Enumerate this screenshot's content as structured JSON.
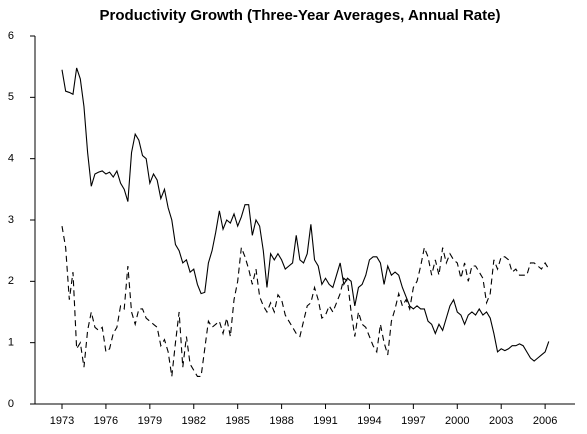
{
  "chart_data": {
    "type": "line",
    "title": "Productivity Growth (Three-Year Averages, Annual Rate)",
    "categories": [
      "1973",
      null,
      null,
      null,
      null,
      null,
      null,
      null,
      null,
      null,
      null,
      null,
      "1976",
      null,
      null,
      null,
      null,
      null,
      null,
      null,
      null,
      null,
      null,
      null,
      "1979",
      null,
      null,
      null,
      null,
      null,
      null,
      null,
      null,
      null,
      null,
      null,
      "1982",
      null,
      null,
      null,
      null,
      null,
      null,
      null,
      null,
      null,
      null,
      null,
      "1985",
      null,
      null,
      null,
      null,
      null,
      null,
      null,
      null,
      null,
      null,
      null,
      "1988",
      null,
      null,
      null,
      null,
      null,
      null,
      null,
      null,
      null,
      null,
      null,
      "1991",
      null,
      null,
      null,
      null,
      null,
      null,
      null,
      null,
      null,
      null,
      null,
      "1994",
      null,
      null,
      null,
      null,
      null,
      null,
      null,
      null,
      null,
      null,
      null,
      "1997",
      null,
      null,
      null,
      null,
      null,
      null,
      null,
      null,
      null,
      null,
      null,
      "2000",
      null,
      null,
      null,
      null,
      null,
      null,
      null,
      null,
      null,
      null,
      null,
      "2003",
      null,
      null,
      null,
      null,
      null,
      null,
      null,
      null,
      null,
      null,
      null,
      "2006",
      null
    ],
    "series": [
      {
        "color": "#000000",
        "style": "solid",
        "values": [
          5.45,
          5.1,
          5.08,
          5.05,
          5.48,
          5.3,
          4.85,
          4.1,
          3.55,
          3.75,
          3.78,
          3.8,
          3.75,
          3.78,
          3.7,
          3.8,
          3.6,
          3.5,
          3.3,
          4.1,
          4.4,
          4.3,
          4.05,
          4.0,
          3.6,
          3.75,
          3.65,
          3.35,
          3.5,
          3.2,
          3.0,
          2.6,
          2.5,
          2.3,
          2.35,
          2.15,
          2.2,
          1.95,
          1.8,
          1.82,
          2.3,
          2.5,
          2.8,
          3.15,
          2.85,
          3.0,
          2.95,
          3.1,
          2.9,
          3.05,
          3.25,
          3.25,
          2.75,
          3.0,
          2.9,
          2.5,
          1.9,
          2.45,
          2.35,
          2.45,
          2.35,
          2.2,
          2.25,
          2.3,
          2.75,
          2.35,
          2.3,
          2.45,
          2.93,
          2.35,
          2.25,
          1.95,
          2.05,
          1.95,
          1.9,
          2.1,
          2.3,
          1.95,
          2.05,
          2.0,
          1.6,
          1.9,
          1.95,
          2.1,
          2.35,
          2.4,
          2.4,
          2.3,
          1.95,
          2.25,
          2.1,
          2.15,
          2.1,
          1.9,
          1.75,
          1.6,
          1.55,
          1.6,
          1.55,
          1.55,
          1.35,
          1.3,
          1.15,
          1.3,
          1.2,
          1.4,
          1.6,
          1.7,
          1.5,
          1.45,
          1.3,
          1.45,
          1.5,
          1.45,
          1.55,
          1.45,
          1.5,
          1.4,
          1.15,
          0.85,
          0.9,
          0.87,
          0.9,
          0.95,
          0.95,
          0.98,
          0.95,
          0.85,
          0.75,
          0.7,
          0.75,
          0.8,
          0.85,
          1.02
        ]
      },
      {
        "color": "#000000",
        "style": "dashed",
        "values": [
          2.9,
          2.55,
          1.7,
          2.15,
          0.9,
          1.0,
          0.6,
          1.2,
          1.5,
          1.25,
          1.2,
          1.25,
          0.85,
          0.9,
          1.15,
          1.25,
          1.6,
          1.55,
          2.25,
          1.5,
          1.3,
          1.55,
          1.55,
          1.4,
          1.35,
          1.3,
          1.25,
          0.95,
          1.05,
          0.85,
          0.45,
          1.0,
          1.5,
          0.6,
          1.1,
          0.65,
          0.55,
          0.45,
          0.45,
          0.9,
          1.35,
          1.25,
          1.3,
          1.35,
          1.15,
          1.4,
          1.1,
          1.7,
          2.0,
          2.55,
          2.4,
          2.2,
          1.95,
          2.2,
          1.75,
          1.6,
          1.5,
          1.65,
          1.5,
          1.78,
          1.7,
          1.45,
          1.35,
          1.25,
          1.15,
          1.1,
          1.35,
          1.6,
          1.65,
          1.9,
          1.7,
          1.4,
          1.45,
          1.6,
          1.5,
          1.65,
          1.8,
          2.05,
          2.0,
          1.5,
          1.1,
          1.5,
          1.3,
          1.25,
          1.1,
          0.95,
          0.85,
          1.3,
          1.0,
          0.8,
          1.35,
          1.55,
          1.8,
          1.6,
          1.7,
          1.55,
          1.9,
          2.0,
          2.25,
          2.55,
          2.4,
          2.1,
          2.35,
          2.1,
          2.55,
          2.3,
          2.45,
          2.35,
          2.3,
          2.05,
          2.3,
          2.0,
          2.25,
          2.25,
          2.15,
          2.05,
          1.65,
          1.8,
          2.35,
          2.2,
          2.4,
          2.4,
          2.35,
          2.15,
          2.2,
          2.1,
          2.1,
          2.1,
          2.3,
          2.3,
          2.25,
          2.2,
          2.3,
          2.2
        ]
      }
    ],
    "ylim": [
      0,
      6
    ],
    "yticks": [
      0,
      1,
      2,
      3,
      4,
      5,
      6
    ],
    "grid": false
  }
}
